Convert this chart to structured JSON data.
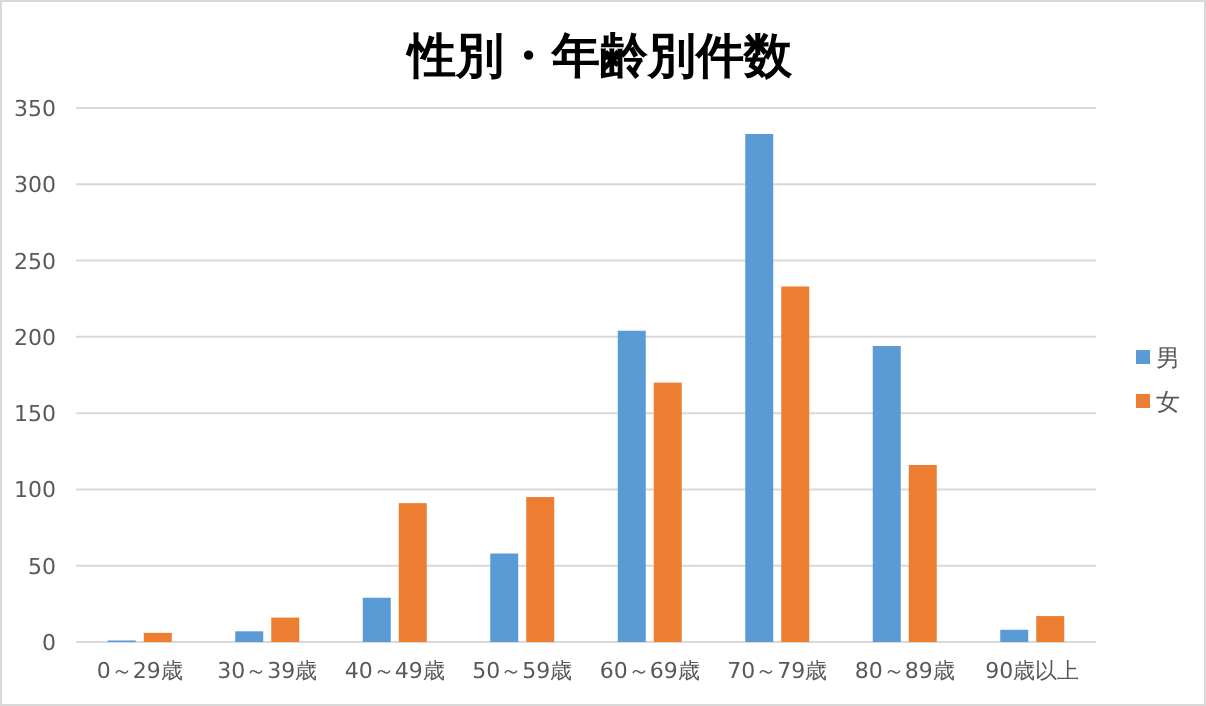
{
  "chart_data": {
    "type": "bar",
    "title": "性別・年齢別件数",
    "categories": [
      "0～29歳",
      "30～39歳",
      "40～49歳",
      "50～59歳",
      "60～69歳",
      "70～79歳",
      "80～89歳",
      "90歳以上"
    ],
    "series": [
      {
        "name": "男",
        "color": "#5b9bd5",
        "values": [
          1,
          7,
          29,
          58,
          204,
          333,
          194,
          8
        ]
      },
      {
        "name": "女",
        "color": "#ed7d31",
        "values": [
          6,
          16,
          91,
          95,
          170,
          233,
          116,
          17
        ]
      }
    ],
    "ylim": [
      0,
      350
    ],
    "yticks": [
      0,
      50,
      100,
      150,
      200,
      250,
      300,
      350
    ],
    "grid": "y",
    "legend": "right"
  }
}
